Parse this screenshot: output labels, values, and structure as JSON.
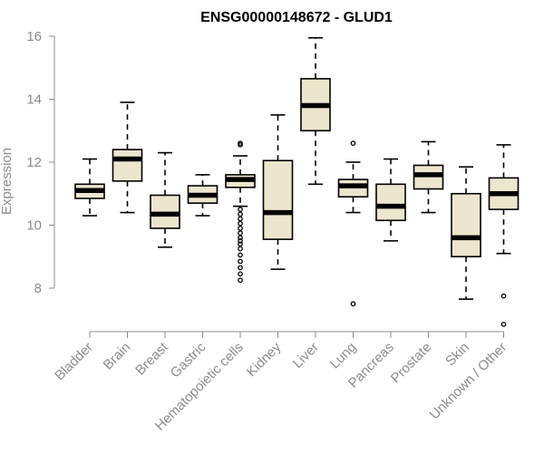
{
  "chart_data": {
    "type": "box",
    "title": "ENSG00000148672 - GLUD1",
    "xlabel": "",
    "ylabel": "Expression",
    "ylim": [
      7.0,
      16.2
    ],
    "yticks": [
      8,
      10,
      12,
      14,
      16
    ],
    "box_fill": "#ede6cf",
    "categories": [
      "Bladder",
      "Brain",
      "Breast",
      "Gastric",
      "Hematopoietic cells",
      "Kidney",
      "Liver",
      "Lung",
      "Pancreas",
      "Prostate",
      "Skin",
      "Unknown / Other"
    ],
    "series": [
      {
        "whisker_low": 10.3,
        "q1": 10.85,
        "median": 11.1,
        "q3": 11.3,
        "whisker_high": 12.1,
        "outliers": []
      },
      {
        "whisker_low": 10.4,
        "q1": 11.4,
        "median": 12.1,
        "q3": 12.4,
        "whisker_high": 13.9,
        "outliers": []
      },
      {
        "whisker_low": 9.3,
        "q1": 9.9,
        "median": 10.35,
        "q3": 10.95,
        "whisker_high": 12.3,
        "outliers": []
      },
      {
        "whisker_low": 10.3,
        "q1": 10.7,
        "median": 10.95,
        "q3": 11.25,
        "whisker_high": 11.6,
        "outliers": []
      },
      {
        "whisker_low": 10.6,
        "q1": 11.2,
        "median": 11.45,
        "q3": 11.6,
        "whisker_high": 12.2,
        "outliers": [
          12.6,
          12.55,
          10.5,
          10.35,
          10.2,
          10.05,
          9.9,
          9.75,
          9.6,
          9.5,
          9.4,
          9.25,
          9.05,
          8.85,
          8.65,
          8.45,
          8.25
        ]
      },
      {
        "whisker_low": 8.6,
        "q1": 9.55,
        "median": 10.4,
        "q3": 12.05,
        "whisker_high": 13.5,
        "outliers": []
      },
      {
        "whisker_low": 11.3,
        "q1": 13.0,
        "median": 13.8,
        "q3": 14.65,
        "whisker_high": 15.95,
        "outliers": []
      },
      {
        "whisker_low": 10.4,
        "q1": 10.9,
        "median": 11.25,
        "q3": 11.45,
        "whisker_high": 12.0,
        "outliers": [
          12.6,
          7.5
        ]
      },
      {
        "whisker_low": 9.5,
        "q1": 10.15,
        "median": 10.6,
        "q3": 11.3,
        "whisker_high": 12.1,
        "outliers": []
      },
      {
        "whisker_low": 10.4,
        "q1": 11.15,
        "median": 11.6,
        "q3": 11.9,
        "whisker_high": 12.65,
        "outliers": []
      },
      {
        "whisker_low": 7.65,
        "q1": 9.0,
        "median": 9.6,
        "q3": 11.0,
        "whisker_high": 11.85,
        "outliers": []
      },
      {
        "whisker_low": 9.1,
        "q1": 10.5,
        "median": 11.0,
        "q3": 11.5,
        "whisker_high": 12.55,
        "outliers": [
          7.75,
          6.85
        ]
      }
    ]
  }
}
